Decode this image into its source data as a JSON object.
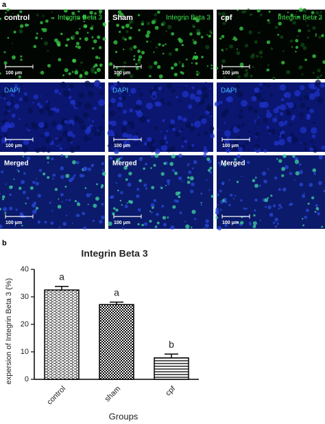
{
  "panel_labels": [
    "a",
    "b"
  ],
  "micrographs": {
    "groups": [
      "control",
      "Sham",
      "cpf"
    ],
    "rows": [
      "Integrin Beta 3",
      "DAPI",
      "Merged"
    ],
    "scale_bar": "100 μm"
  },
  "chart_data": {
    "type": "bar",
    "title": "Integrin Beta 3",
    "categories": [
      "control",
      "sham",
      "cpf"
    ],
    "values": [
      32.5,
      27.2,
      7.8
    ],
    "errors": [
      1.3,
      0.9,
      1.4
    ],
    "annotations": [
      "a",
      "a",
      "b"
    ],
    "color": "#000000",
    "ylim": [
      0,
      40
    ],
    "yticks": [
      0,
      10,
      20,
      30,
      40
    ],
    "x_label": "Groups",
    "y_label": "expersion of Integrin Beta 3 (%)"
  }
}
